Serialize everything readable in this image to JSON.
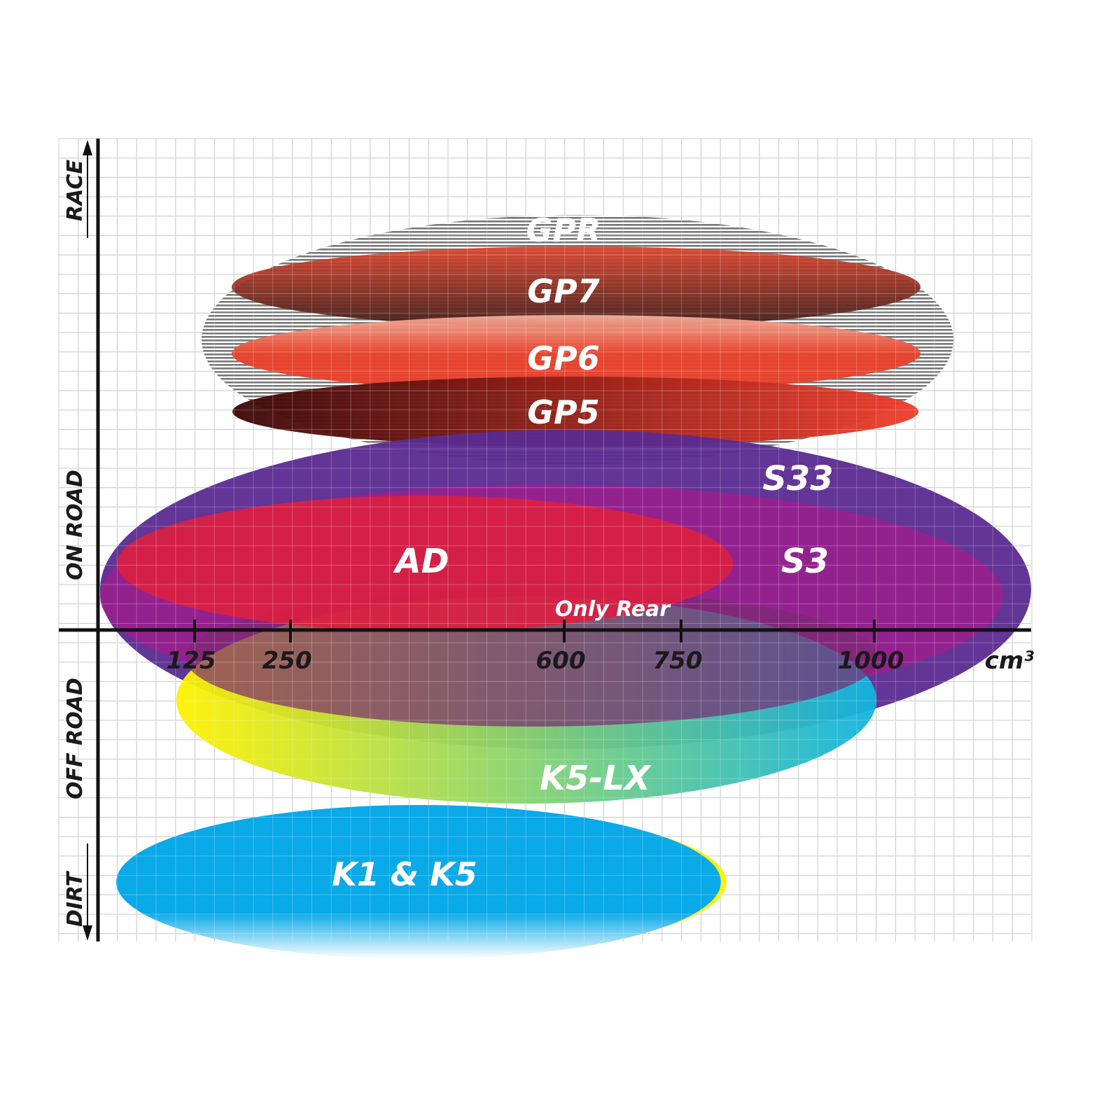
{
  "chart_data": {
    "type": "positioning-ellipses",
    "x_axis": {
      "unit": "cm³",
      "ticks": [
        "125",
        "250",
        "600",
        "750",
        "1000"
      ]
    },
    "y_axis": {
      "labels": [
        "RACE",
        "ON ROAD",
        "OFF ROAD",
        "DIRT"
      ]
    },
    "grid": true,
    "series": [
      {
        "name": "GPR",
        "color": "#8a8a8a",
        "style": "striped"
      },
      {
        "name": "GP7",
        "colors": [
          "#e0452e",
          "#3a1a16"
        ]
      },
      {
        "name": "GP6",
        "colors": [
          "#f2b09a",
          "#e8402a"
        ]
      },
      {
        "name": "GP5",
        "colors": [
          "#4a0a0a",
          "#e83a2a"
        ]
      },
      {
        "name": "S33",
        "color": "#5a2a90"
      },
      {
        "name": "S3",
        "color": "#9c1f8e"
      },
      {
        "name": "AD",
        "color": "#dc1f40"
      },
      {
        "name": "Only Rear",
        "color": "#7a2a70"
      },
      {
        "name": "K5-LX",
        "colors": [
          "#fff200",
          "#10b4e0"
        ]
      },
      {
        "name": "K1 & K5",
        "color": "#0aa9e8"
      }
    ]
  }
}
